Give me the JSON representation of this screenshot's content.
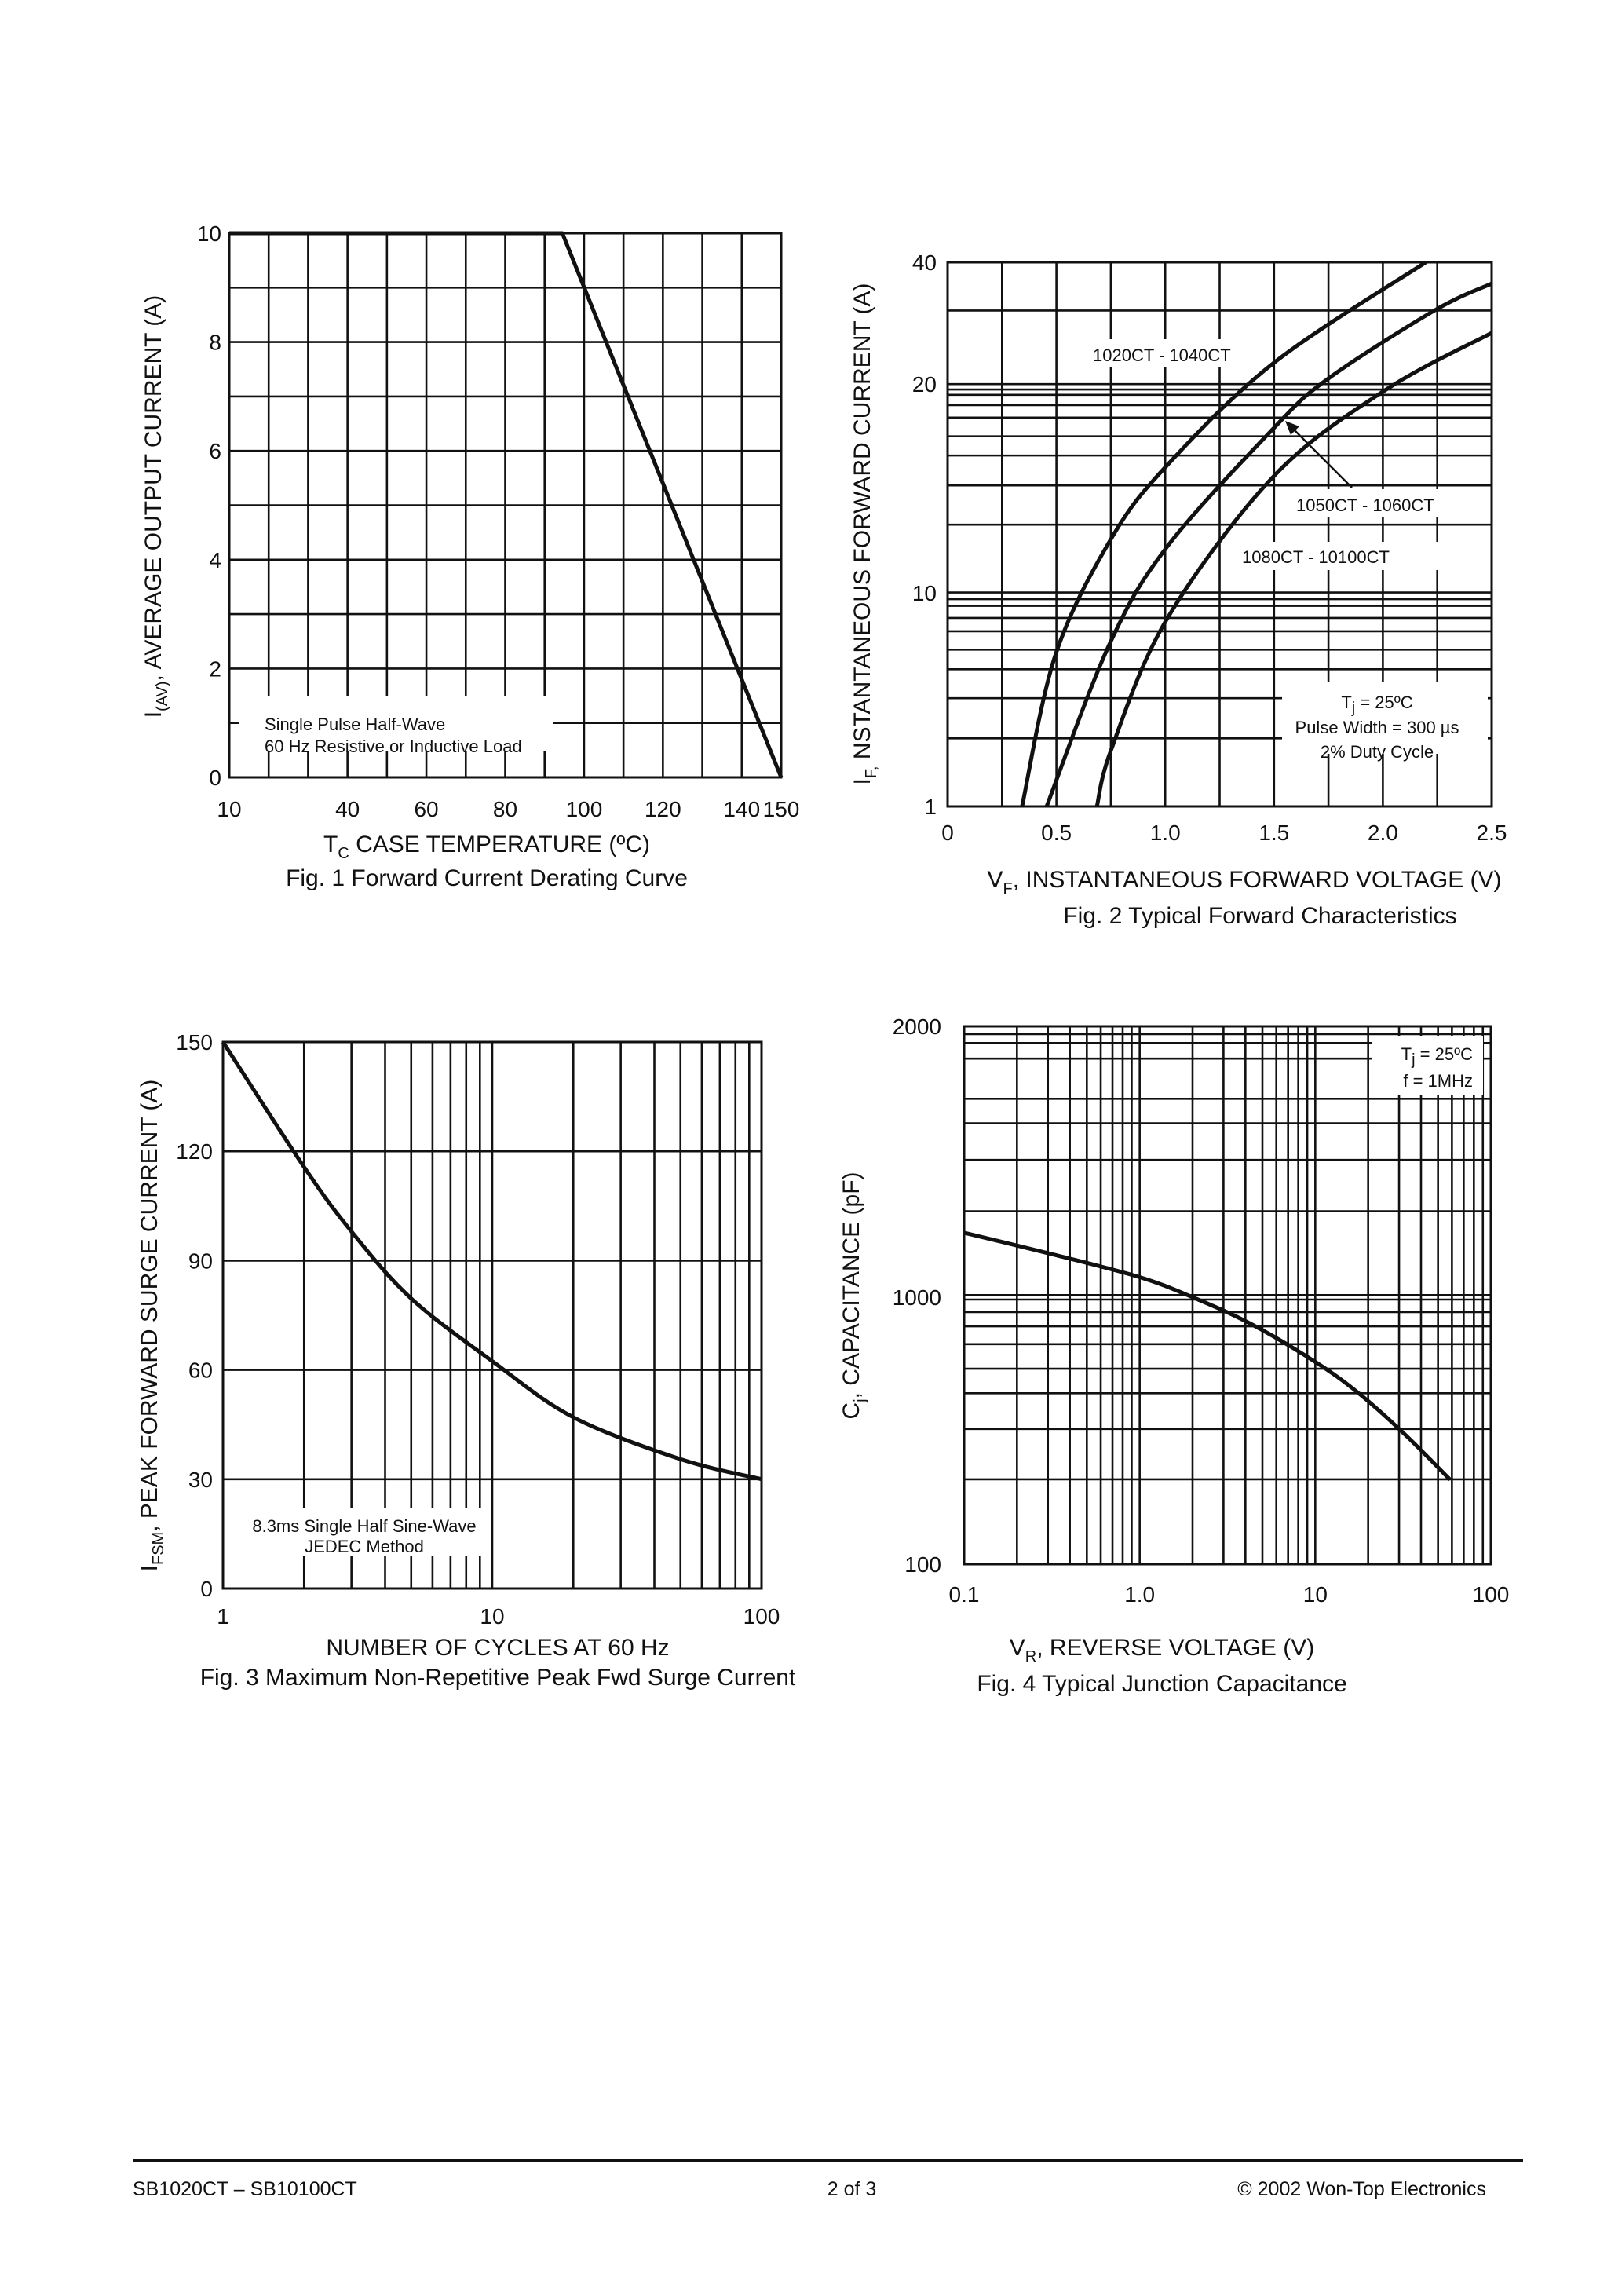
{
  "chart_data": [
    {
      "type": "line",
      "caption": "Fig. 1  Forward Current Derating Curve",
      "xlabel": {
        "main": "T",
        "sub": "C",
        "rest": " CASE TEMPERATURE (ºC)"
      },
      "ylabel": {
        "main": "I",
        "sub": "(AV)",
        "rest": ", AVERAGE OUTPUT CURRENT (A)"
      },
      "xlim": [
        10,
        150
      ],
      "ylim": [
        0,
        10
      ],
      "x_ticks": [
        10,
        40,
        60,
        80,
        100,
        120,
        140,
        150
      ],
      "x_tick_labels": [
        "10",
        "40",
        "60",
        "80",
        "100",
        "120",
        "140",
        "150"
      ],
      "y_ticks": [
        0,
        2,
        4,
        6,
        8,
        10
      ],
      "grid": true,
      "annotation": [
        "Single Pulse Half-Wave",
        "60 Hz Resistive or Inductive Load"
      ],
      "series": [
        {
          "x": [
            10,
            94.5,
            150
          ],
          "y": [
            10,
            10,
            0
          ]
        }
      ]
    },
    {
      "type": "line",
      "caption": "Fig. 2  Typical Forward Characteristics",
      "xlabel": {
        "main": "V",
        "sub": "F",
        "rest": ", INSTANTANEOUS FORWARD VOLTAGE (V)"
      },
      "ylabel": {
        "main": "I",
        "sub": "F,",
        "rest": " NSTANTANEOUS FORWARD CURRENT (A)"
      },
      "xlim": [
        0,
        2.5
      ],
      "ylim": [
        1,
        40
      ],
      "x_ticks": [
        0,
        0.5,
        1.0,
        1.5,
        2.0,
        2.5
      ],
      "x_tick_labels": [
        "0",
        "0.5",
        "1.0",
        "1.5",
        "2.0",
        "2.5"
      ],
      "y_ticks": [
        1,
        10,
        20,
        40
      ],
      "grid": true,
      "conditions": {
        "tj_main": "T",
        "tj_sub": "j",
        "tj_rest": " =  25ºC",
        "pulse": "Pulse Width =  300 µs",
        "duty": "2% Duty Cycle"
      },
      "series": [
        {
          "name": "1020CT - 1040CT",
          "x": [
            0.342,
            0.496,
            0.752,
            1.008,
            1.5,
            2.197
          ],
          "y": [
            1,
            7.4,
            12.6,
            16.1,
            23.5,
            40
          ]
        },
        {
          "name": "1050CT - 1060CT",
          "x": [
            0.455,
            0.742,
            1.008,
            1.5,
            1.746,
            2.238,
            2.5
          ],
          "y": [
            1,
            7.8,
            12.2,
            17.9,
            20.8,
            32.1,
            36.5
          ]
        },
        {
          "name": "1080CT - 10100CT",
          "x": [
            0.686,
            0.752,
            1.008,
            1.5,
            2.01,
            2.5
          ],
          "y": [
            1,
            3.4,
            8.9,
            15.6,
            19.7,
            28.4
          ]
        }
      ]
    },
    {
      "type": "line",
      "caption": "Fig. 3  Maximum Non-Repetitive Peak Fwd Surge Current",
      "xlabel": {
        "main": "NUMBER OF CYCLES AT 60 Hz",
        "sub": "",
        "rest": ""
      },
      "ylabel": {
        "main": "I",
        "sub": "FSM",
        "rest": ", PEAK FORWARD SURGE CURRENT (A)"
      },
      "xscale": "log",
      "xlim": [
        1,
        100
      ],
      "ylim": [
        0,
        150
      ],
      "x_ticks": [
        1,
        10,
        100
      ],
      "x_tick_labels": [
        "1",
        "10",
        "100"
      ],
      "y_ticks": [
        0,
        30,
        60,
        90,
        120,
        150
      ],
      "grid": true,
      "annotation": [
        "8.3ms Single Half Sine-Wave",
        "JEDEC Method"
      ],
      "series": [
        {
          "x": [
            1,
            2,
            3,
            5,
            10,
            20,
            50,
            100
          ],
          "y": [
            150,
            115.7,
            98,
            79.6,
            62.4,
            47,
            35.5,
            30
          ]
        }
      ]
    },
    {
      "type": "line",
      "caption": "Fig. 4  Typical Junction Capacitance",
      "xlabel": {
        "main": "V",
        "sub": "R",
        "rest": ", REVERSE VOLTAGE (V)"
      },
      "ylabel": {
        "main": "C",
        "sub": "j",
        "rest": ", CAPACITANCE (pF)"
      },
      "xscale": "log",
      "xlim": [
        0.1,
        100
      ],
      "ylim": [
        100,
        2000
      ],
      "x_ticks": [
        0.1,
        1,
        10,
        100
      ],
      "x_tick_labels": [
        "0.1",
        "1.0",
        "10",
        "100"
      ],
      "y_ticks": [
        100,
        1000,
        2000
      ],
      "grid": true,
      "conditions": {
        "tj_main": "T",
        "tj_sub": "j",
        "tj_rest": " =  25ºC",
        "freq": "f =  1MHz"
      },
      "series": [
        {
          "x": [
            0.1,
            0.33,
            1.0,
            2.0,
            4.3,
            10,
            17.6,
            31.8,
            58.6
          ],
          "y": [
            1238,
            1156,
            1074,
            1000,
            910,
            782,
            677,
            542,
            385
          ]
        }
      ]
    }
  ],
  "footer": {
    "left": "SB1020CT – SB10100CT",
    "center": "2 of 3",
    "right": "© 2002 Won-Top Electronics"
  }
}
